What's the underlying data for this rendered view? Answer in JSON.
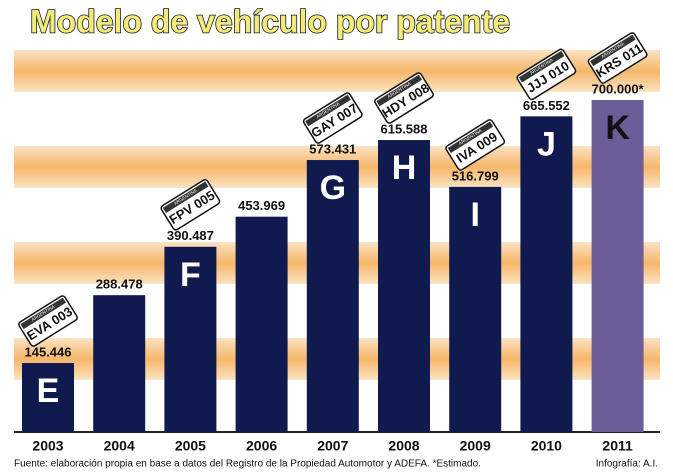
{
  "chart_data": {
    "type": "bar",
    "title": "Modelo de vehículo por patente",
    "categories": [
      "2003",
      "2004",
      "2005",
      "2006",
      "2007",
      "2008",
      "2009",
      "2010",
      "2011"
    ],
    "values": [
      145446,
      288478,
      390487,
      453969,
      573431,
      615588,
      516799,
      665552,
      700000
    ],
    "value_labels": [
      "145.446",
      "288.478",
      "390.487",
      "453.969",
      "573.431",
      "615.588",
      "516.799",
      "665.552",
      "700.000*"
    ],
    "colors": [
      "#111a4e",
      "#111a4e",
      "#111a4e",
      "#111a4e",
      "#111a4e",
      "#111a4e",
      "#111a4e",
      "#111a4e",
      "#6c5c98"
    ],
    "bar_letters": [
      "E",
      null,
      "F",
      null,
      "G",
      "H",
      "I",
      "J",
      "K"
    ],
    "letter_colors": [
      "#ffffff",
      null,
      "#ffffff",
      null,
      "#ffffff",
      "#ffffff",
      "#ffffff",
      "#ffffff",
      "#111111"
    ],
    "plates": [
      "EVA 003",
      null,
      "FPV 005",
      null,
      "GAY 007",
      "HDY 008",
      "IVA 009",
      "JJJ 010",
      "KRS 011"
    ],
    "plate_header": "ARGENTINA",
    "source": "Fuente: elaboración propia en base a datos del Registro de la Propiedad Automotor y ADEFA. *Estimado.",
    "credit": "Infografía: A.I."
  }
}
